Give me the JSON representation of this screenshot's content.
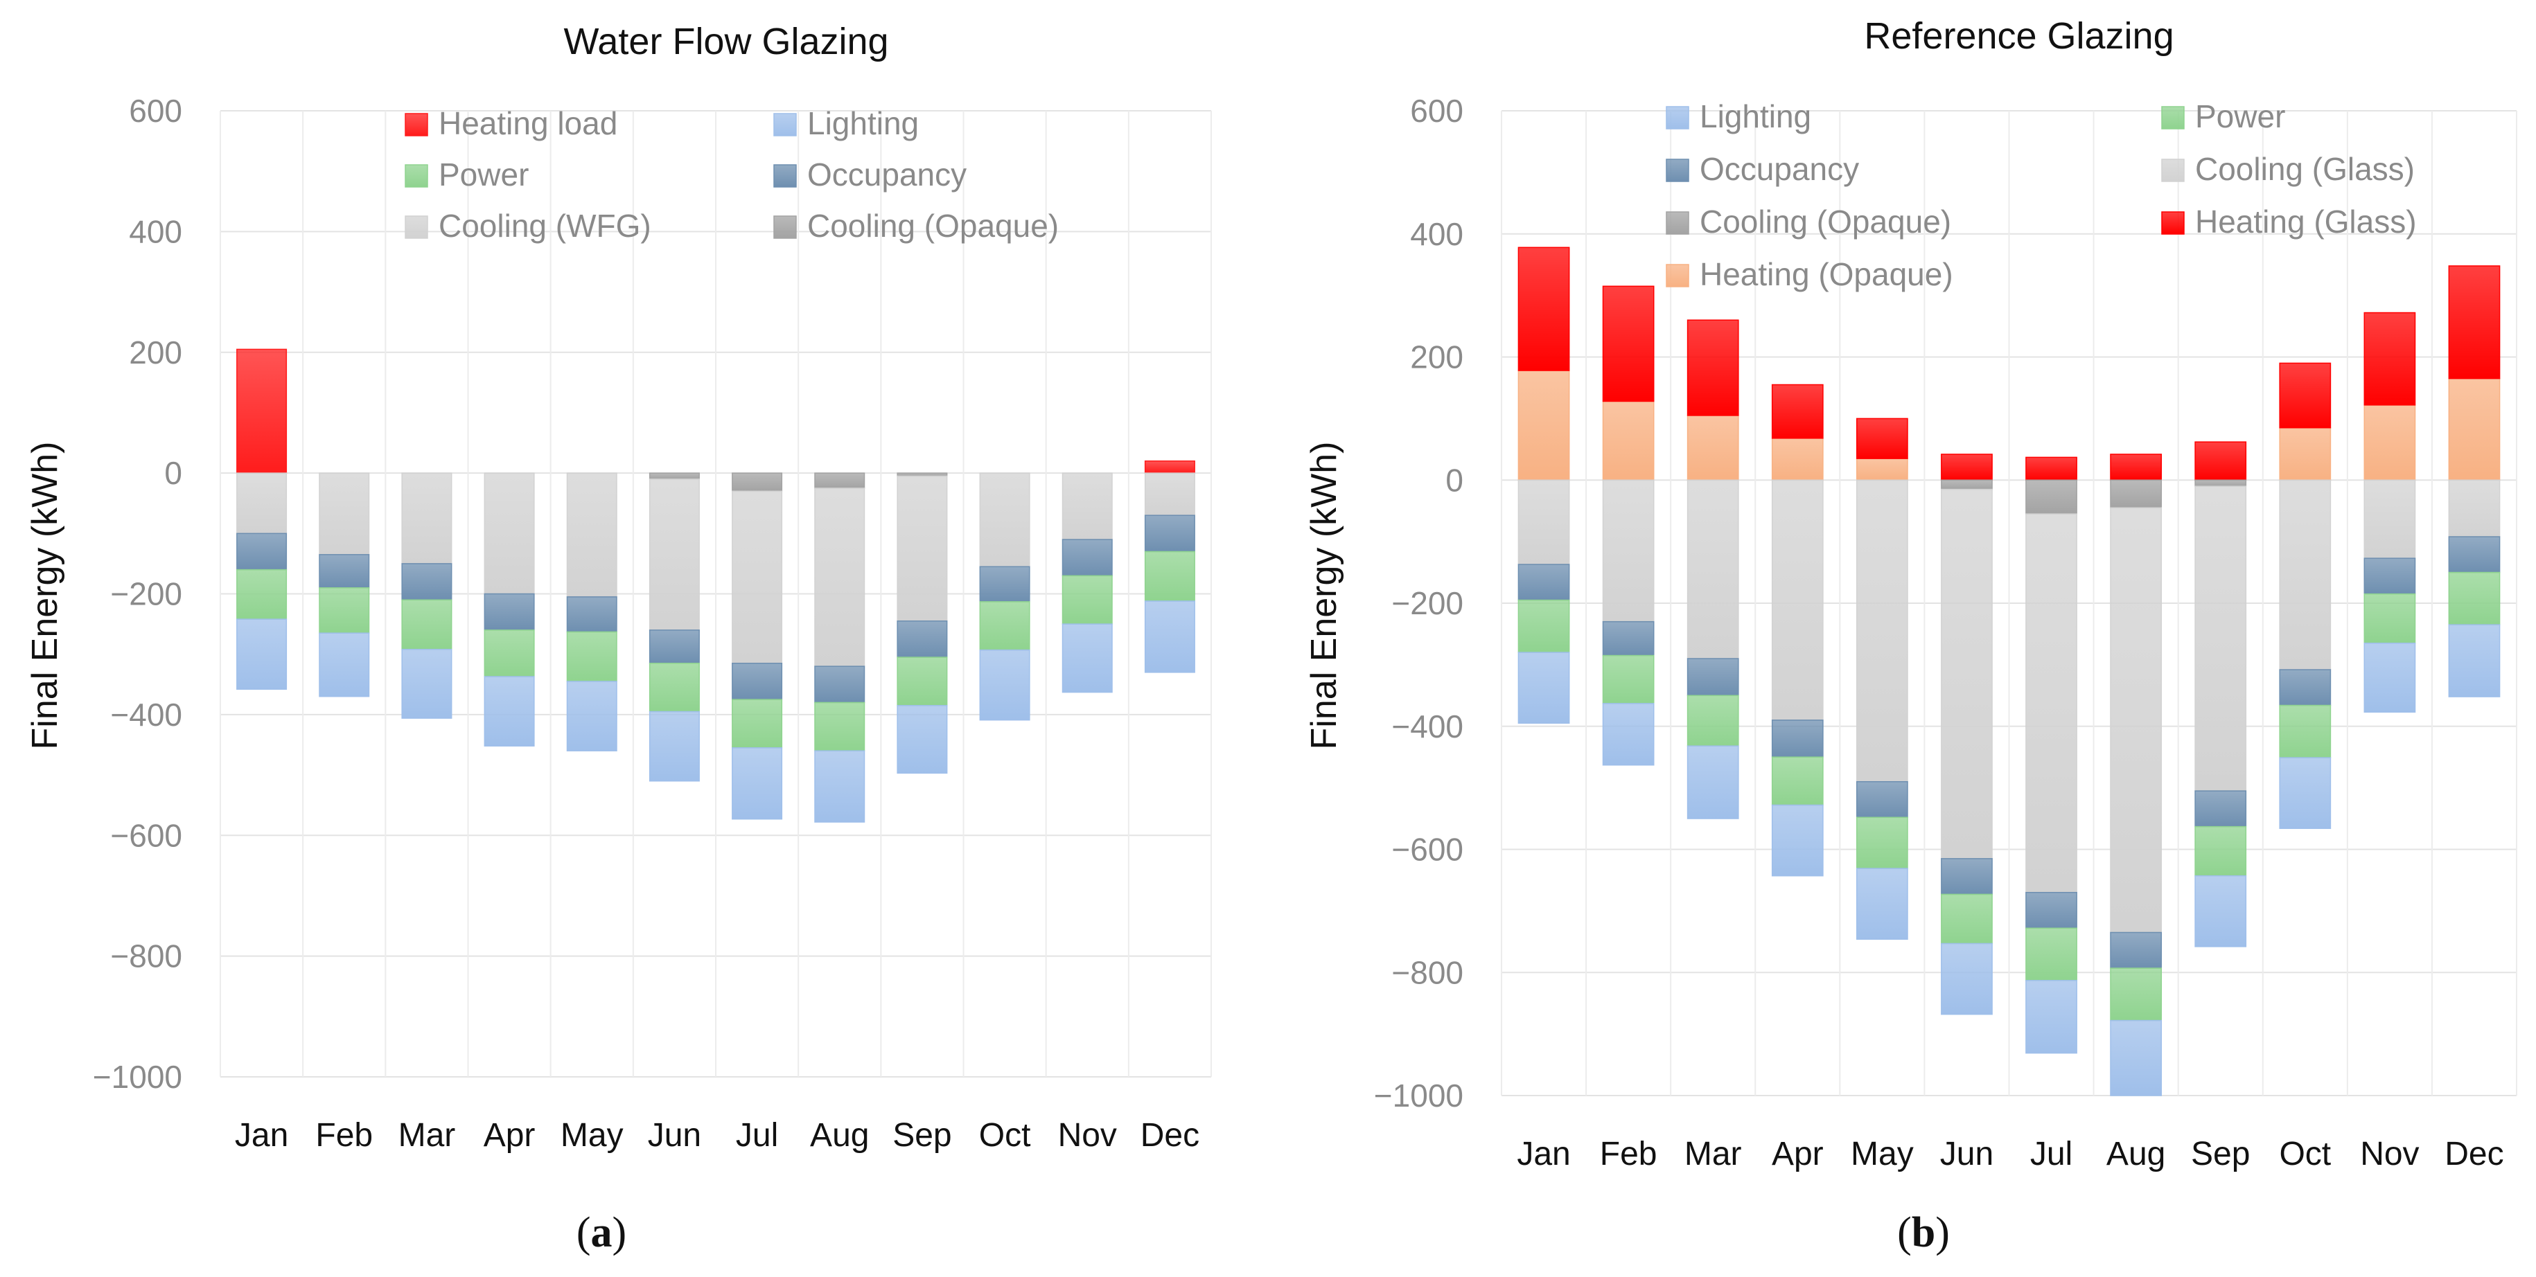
{
  "chart_data": [
    {
      "type": "bar",
      "stacked": true,
      "title": "Water Flow Glazing",
      "sublabel": "a",
      "xlabel": "",
      "ylabel": "Final Energy (kWh)",
      "ylim": [
        -1000,
        600
      ],
      "yticks": [
        600,
        400,
        200,
        0,
        -200,
        -400,
        -600,
        -800,
        -1000
      ],
      "ytick_labels": [
        "600",
        "400",
        "200",
        "0",
        "−200",
        "−400",
        "−600",
        "−800",
        "−1000"
      ],
      "categories": [
        "Jan",
        "Feb",
        "Mar",
        "Apr",
        "May",
        "Jun",
        "Jul",
        "Aug",
        "Sep",
        "Oct",
        "Nov",
        "Dec"
      ],
      "legend_position": "top",
      "series": [
        {
          "name": "Heating load",
          "color": "#ff1c1c",
          "values": [
            205,
            0,
            0,
            0,
            0,
            0,
            0,
            0,
            0,
            0,
            0,
            20
          ]
        },
        {
          "name": "Cooling (Opaque)",
          "color": "#a3a3a3",
          "values": [
            0,
            0,
            0,
            0,
            0,
            -10,
            -30,
            -25,
            -5,
            0,
            0,
            0
          ]
        },
        {
          "name": "Cooling (WFG)",
          "color": "#d2d2d2",
          "values": [
            -100,
            -135,
            -150,
            -200,
            -205,
            -250,
            -285,
            -295,
            -240,
            -155,
            -110,
            -70
          ]
        },
        {
          "name": "Occupancy",
          "color": "#6e8fb0",
          "values": [
            -60,
            -55,
            -60,
            -60,
            -58,
            -55,
            -60,
            -60,
            -60,
            -58,
            -60,
            -60
          ]
        },
        {
          "name": "Power",
          "color": "#8fd38f",
          "values": [
            -82,
            -75,
            -82,
            -77,
            -82,
            -80,
            -80,
            -80,
            -80,
            -80,
            -80,
            -82
          ]
        },
        {
          "name": "Lighting",
          "color": "#9fbfea",
          "values": [
            -116,
            -105,
            -114,
            -115,
            -115,
            -115,
            -118,
            -118,
            -112,
            -116,
            -113,
            -118
          ]
        }
      ],
      "legend_order": [
        "Heating load",
        "Lighting",
        "Power",
        "Occupancy",
        "Cooling (WFG)",
        "Cooling (Opaque)"
      ]
    },
    {
      "type": "bar",
      "stacked": true,
      "title": "Reference Glazing",
      "sublabel": "b",
      "xlabel": "",
      "ylabel": "Final Energy (kWh)",
      "ylim": [
        -1000,
        600
      ],
      "yticks": [
        600,
        400,
        200,
        0,
        -200,
        -400,
        -600,
        -800,
        -1000
      ],
      "ytick_labels": [
        "600",
        "400",
        "200",
        "0",
        "−200",
        "−400",
        "−600",
        "−800",
        "−1000"
      ],
      "categories": [
        "Jan",
        "Feb",
        "Mar",
        "Apr",
        "May",
        "Jun",
        "Jul",
        "Aug",
        "Sep",
        "Oct",
        "Nov",
        "Dec"
      ],
      "legend_position": "top",
      "series": [
        {
          "name": "Heating (Opaque)",
          "color": "#f8b183",
          "values": [
            178,
            128,
            105,
            68,
            35,
            0,
            0,
            0,
            0,
            85,
            122,
            165
          ]
        },
        {
          "name": "Heating (Glass)",
          "color": "#ff0000",
          "values": [
            200,
            187,
            155,
            87,
            65,
            42,
            37,
            42,
            62,
            105,
            150,
            183
          ]
        },
        {
          "name": "Cooling (Opaque)",
          "color": "#a3a3a3",
          "values": [
            0,
            0,
            0,
            0,
            0,
            -15,
            -55,
            -45,
            -10,
            0,
            0,
            0
          ]
        },
        {
          "name": "Cooling (Glass)",
          "color": "#d2d2d2",
          "values": [
            -137,
            -230,
            -290,
            -390,
            -490,
            -600,
            -615,
            -690,
            -495,
            -308,
            -127,
            -92
          ]
        },
        {
          "name": "Occupancy",
          "color": "#6e8fb0",
          "values": [
            -58,
            -55,
            -60,
            -60,
            -58,
            -58,
            -58,
            -58,
            -58,
            -58,
            -58,
            -58
          ]
        },
        {
          "name": "Power",
          "color": "#8fd38f",
          "values": [
            -85,
            -78,
            -82,
            -78,
            -83,
            -80,
            -85,
            -85,
            -80,
            -85,
            -80,
            -85
          ]
        },
        {
          "name": "Lighting",
          "color": "#9fbfea",
          "values": [
            -115,
            -100,
            -118,
            -115,
            -115,
            -115,
            -118,
            -122,
            -115,
            -115,
            -112,
            -117
          ]
        }
      ],
      "legend_order": [
        "Lighting",
        "Power",
        "Occupancy",
        "Cooling (Glass)",
        "Cooling (Opaque)",
        "Heating (Glass)",
        "Heating (Opaque)"
      ]
    }
  ]
}
